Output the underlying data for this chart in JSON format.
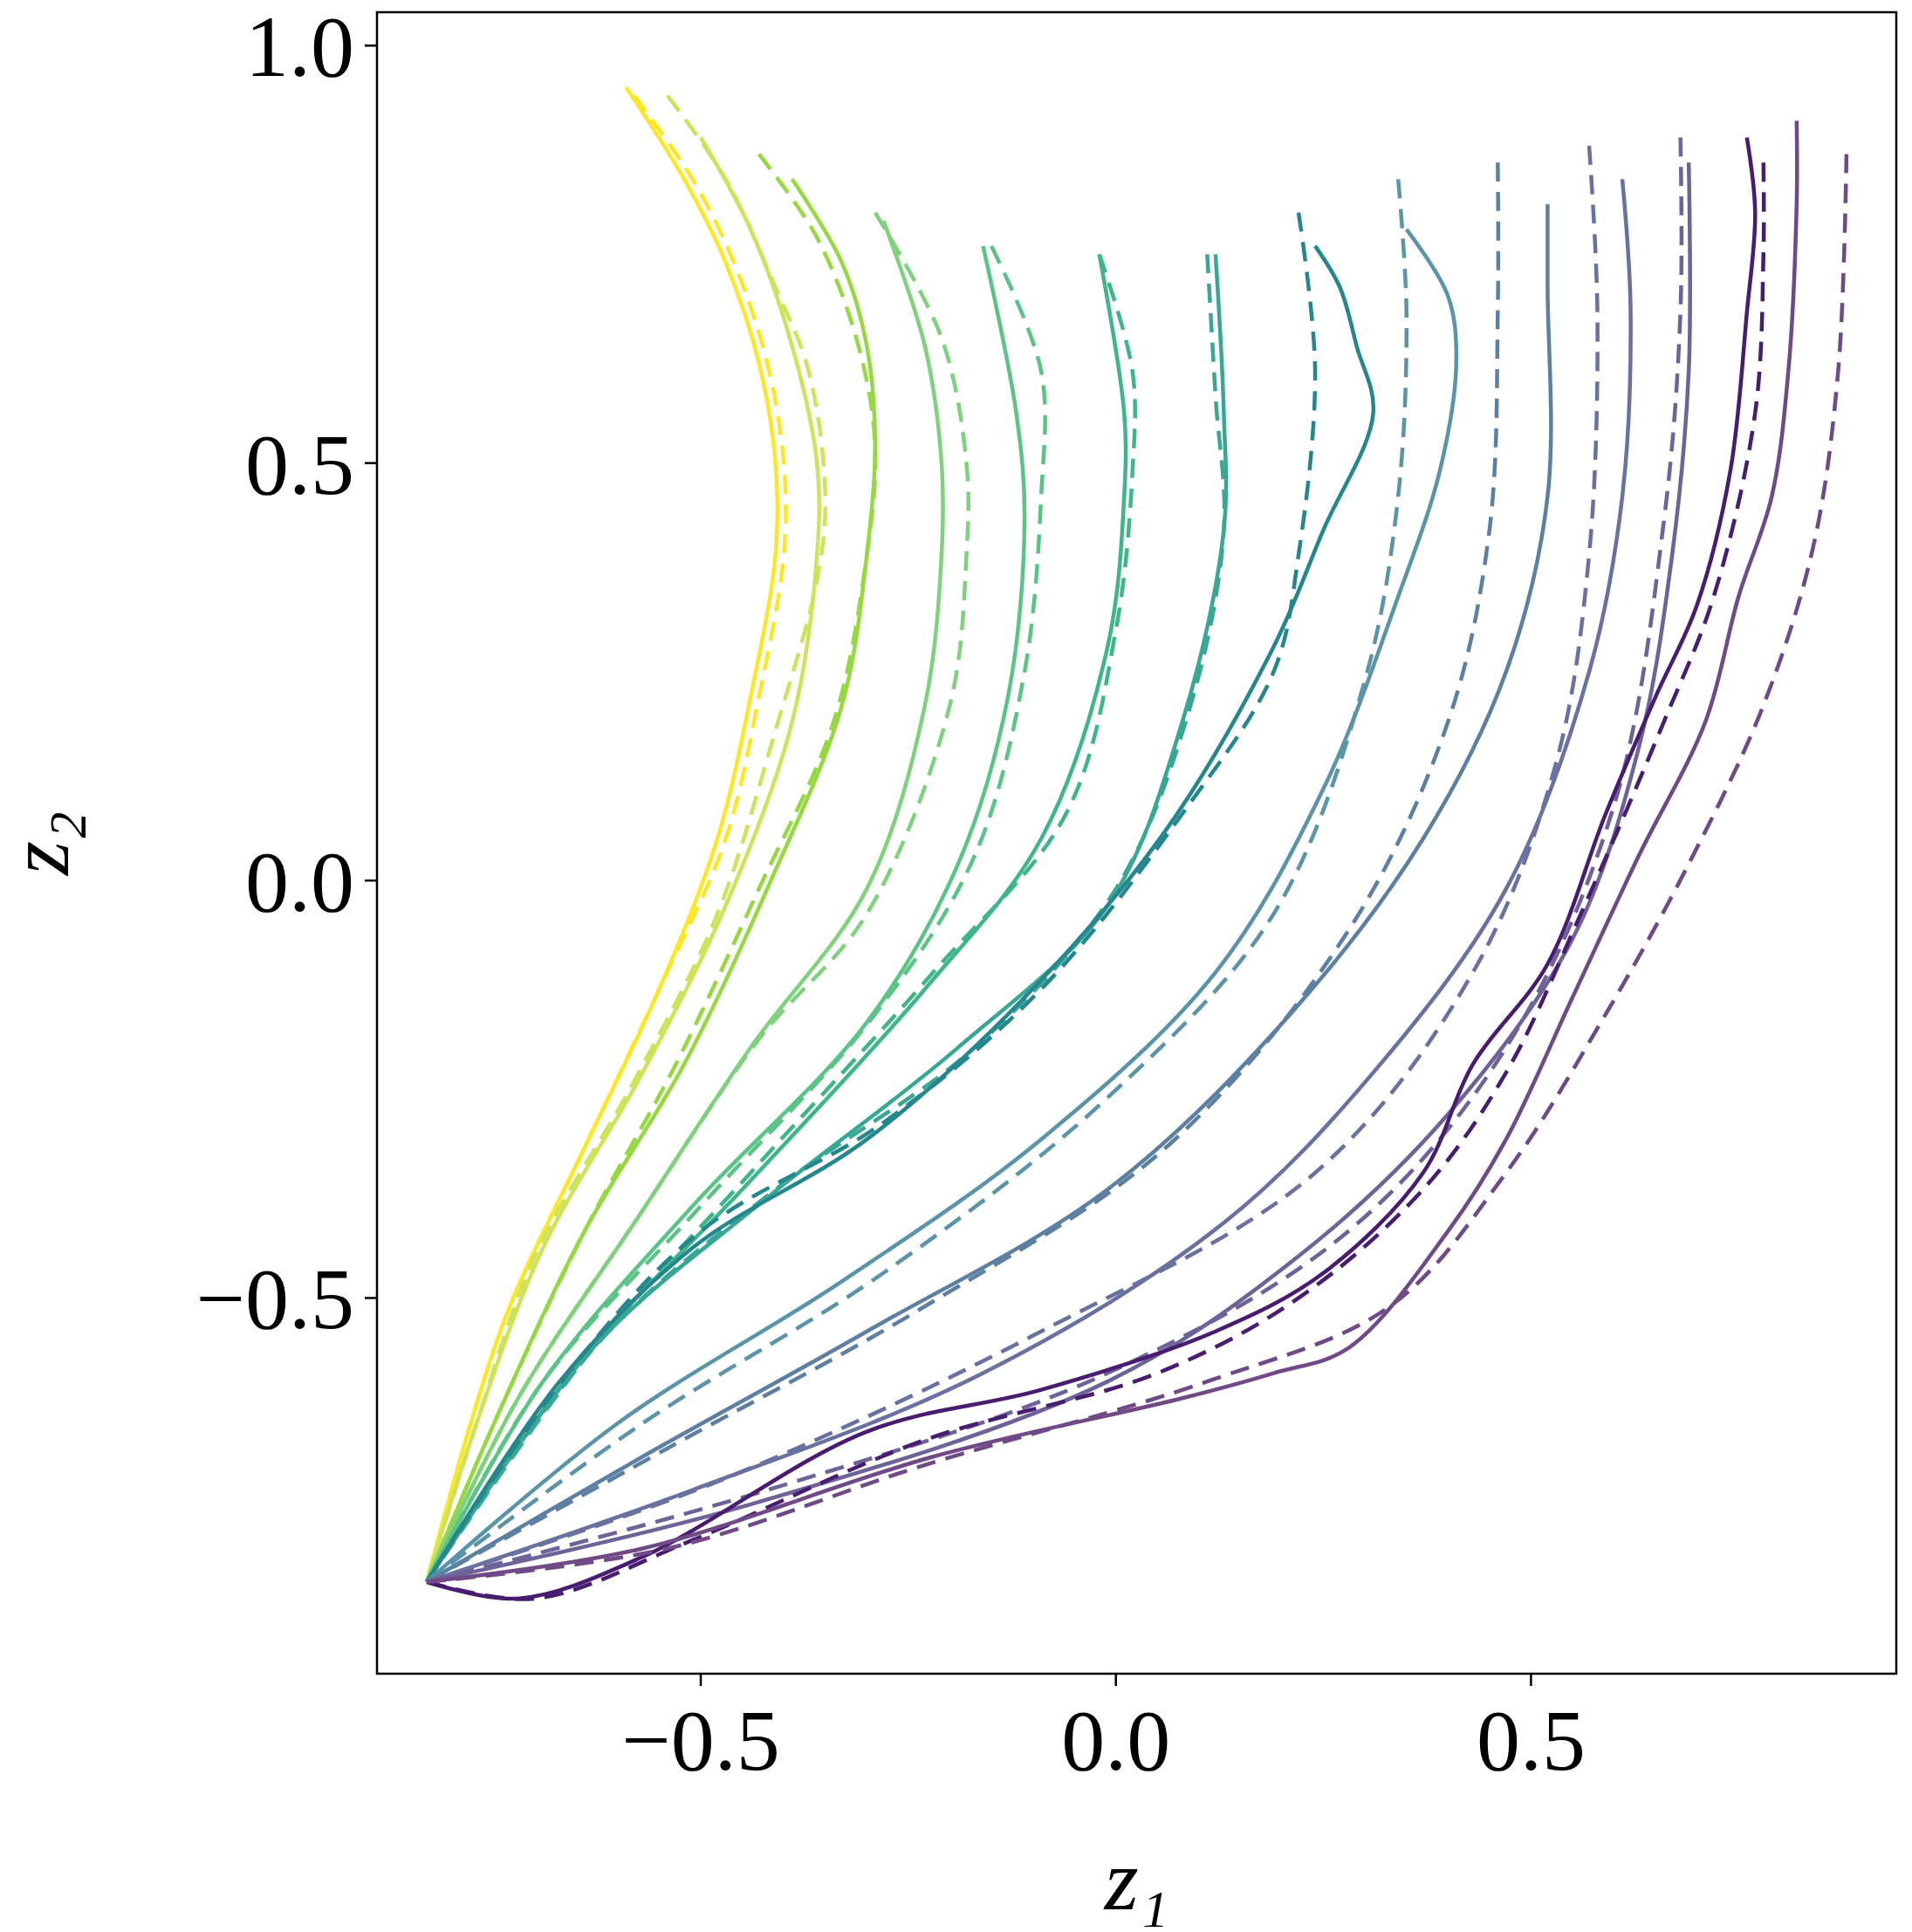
{
  "chart_data": {
    "type": "line",
    "xlabel": "z₁",
    "ylabel": "z₂",
    "xlim": [
      -0.89,
      0.94
    ],
    "ylim": [
      -0.95,
      1.04
    ],
    "xticks": [
      {
        "value": -0.5,
        "label": "−0.5"
      },
      {
        "value": 0,
        "label": "0.0"
      },
      {
        "value": 0.5,
        "label": "0.5"
      }
    ],
    "yticks": [
      {
        "value": -0.5,
        "label": "−0.5"
      },
      {
        "value": 0,
        "label": "0.0"
      },
      {
        "value": 0.5,
        "label": "0.5"
      },
      {
        "value": 1,
        "label": "1.0"
      }
    ],
    "grid": false,
    "series": [
      {
        "color": "#fde725",
        "line_style": "solid",
        "x": [
          -0.83,
          -0.78,
          -0.73,
          -0.64,
          -0.55,
          -0.48,
          -0.44,
          -0.41,
          -0.41,
          -0.43,
          -0.47,
          -0.52,
          -0.59
        ],
        "values": [
          -0.84,
          -0.66,
          -0.51,
          -0.32,
          -0.13,
          0.05,
          0.22,
          0.39,
          0.5,
          0.62,
          0.74,
          0.84,
          0.95
        ]
      },
      {
        "color": "#fde725",
        "line_style": "dashed",
        "x": [
          -0.83,
          -0.78,
          -0.73,
          -0.64,
          -0.55,
          -0.47,
          -0.43,
          -0.4,
          -0.4,
          -0.42,
          -0.46,
          -0.51,
          -0.58
        ],
        "values": [
          -0.84,
          -0.66,
          -0.51,
          -0.32,
          -0.13,
          0.05,
          0.22,
          0.39,
          0.5,
          0.62,
          0.74,
          0.84,
          0.94
        ]
      },
      {
        "color": "#cfe35a",
        "line_style": "solid",
        "x": [
          -0.83,
          -0.77,
          -0.69,
          -0.57,
          -0.47,
          -0.39,
          -0.36,
          -0.36,
          -0.39,
          -0.44,
          -0.5
        ],
        "values": [
          -0.84,
          -0.65,
          -0.44,
          -0.23,
          -0.03,
          0.19,
          0.39,
          0.5,
          0.64,
          0.78,
          0.89
        ]
      },
      {
        "color": "#cfe35a",
        "line_style": "dashed",
        "x": [
          -0.83,
          -0.77,
          -0.7,
          -0.58,
          -0.48,
          -0.41,
          -0.36,
          -0.35,
          -0.37,
          -0.41,
          -0.47,
          -0.54
        ],
        "values": [
          -0.84,
          -0.65,
          -0.45,
          -0.24,
          -0.04,
          0.18,
          0.36,
          0.46,
          0.61,
          0.71,
          0.84,
          0.94
        ]
      },
      {
        "color": "#95d840",
        "line_style": "solid",
        "x": [
          -0.83,
          -0.74,
          -0.64,
          -0.52,
          -0.42,
          -0.33,
          -0.3,
          -0.29,
          -0.3,
          -0.33,
          -0.39
        ],
        "values": [
          -0.84,
          -0.63,
          -0.42,
          -0.22,
          -0.01,
          0.21,
          0.39,
          0.52,
          0.64,
          0.74,
          0.84
        ]
      },
      {
        "color": "#95d840",
        "line_style": "dashed",
        "x": [
          -0.83,
          -0.74,
          -0.64,
          -0.53,
          -0.43,
          -0.34,
          -0.3,
          -0.29,
          -0.31,
          -0.36,
          -0.43
        ],
        "values": [
          -0.84,
          -0.63,
          -0.42,
          -0.22,
          -0.01,
          0.19,
          0.39,
          0.52,
          0.64,
          0.77,
          0.87
        ]
      },
      {
        "color": "#7fd17e",
        "line_style": "solid",
        "x": [
          -0.83,
          -0.72,
          -0.58,
          -0.44,
          -0.3,
          -0.23,
          -0.21,
          -0.21,
          -0.23,
          -0.28
        ],
        "values": [
          -0.84,
          -0.62,
          -0.41,
          -0.2,
          -0.01,
          0.21,
          0.39,
          0.5,
          0.64,
          0.79
        ]
      },
      {
        "color": "#7fd17e",
        "line_style": "dashed",
        "x": [
          -0.83,
          -0.72,
          -0.58,
          -0.43,
          -0.3,
          -0.2,
          -0.18,
          -0.18,
          -0.21,
          -0.29
        ],
        "values": [
          -0.84,
          -0.62,
          -0.41,
          -0.19,
          -0.04,
          0.21,
          0.39,
          0.5,
          0.65,
          0.8
        ]
      },
      {
        "color": "#5cc387",
        "line_style": "solid",
        "x": [
          -0.83,
          -0.69,
          -0.51,
          -0.3,
          -0.19,
          -0.13,
          -0.11,
          -0.12,
          -0.16
        ],
        "values": [
          -0.84,
          -0.6,
          -0.39,
          -0.17,
          0.02,
          0.22,
          0.43,
          0.56,
          0.76
        ]
      },
      {
        "color": "#5cc387",
        "line_style": "dashed",
        "x": [
          -0.83,
          -0.69,
          -0.5,
          -0.29,
          -0.17,
          -0.11,
          -0.09,
          -0.09,
          -0.15
        ],
        "values": [
          -0.84,
          -0.6,
          -0.39,
          -0.16,
          0.03,
          0.25,
          0.46,
          0.61,
          0.76
        ]
      },
      {
        "color": "#3fb58a",
        "line_style": "solid",
        "x": [
          -0.83,
          -0.64,
          -0.45,
          -0.23,
          -0.09,
          -0.01,
          0.01,
          0.01,
          -0.02
        ],
        "values": [
          -0.84,
          -0.57,
          -0.37,
          -0.13,
          0.05,
          0.28,
          0.46,
          0.56,
          0.75
        ]
      },
      {
        "color": "#3fb58a",
        "line_style": "dashed",
        "x": [
          -0.83,
          -0.63,
          -0.44,
          -0.22,
          -0.06,
          0,
          0.02,
          0.02,
          -0.02
        ],
        "values": [
          -0.84,
          -0.56,
          -0.35,
          -0.11,
          0.08,
          0.3,
          0.49,
          0.61,
          0.75
        ]
      },
      {
        "color": "#38a895",
        "line_style": "solid",
        "x": [
          -0.83,
          -0.63,
          -0.42,
          -0.19,
          -0.01,
          0.08,
          0.13,
          0.13,
          0.12
        ],
        "values": [
          -0.84,
          -0.56,
          -0.38,
          -0.2,
          -0.03,
          0.19,
          0.42,
          0.56,
          0.75
        ]
      },
      {
        "color": "#38a895",
        "line_style": "dashed",
        "x": [
          -0.83,
          -0.62,
          -0.41,
          -0.17,
          0,
          0.09,
          0.13,
          0.12,
          0.11
        ],
        "values": [
          -0.84,
          -0.55,
          -0.37,
          -0.2,
          -0.01,
          0.21,
          0.42,
          0.58,
          0.75
        ]
      },
      {
        "color": "#25868e",
        "line_style": "solid",
        "x": [
          -0.83,
          -0.67,
          -0.51,
          -0.3,
          -0.11,
          0.06,
          0.19,
          0.25,
          0.31,
          0.29,
          0.27,
          0.24
        ],
        "values": [
          -0.84,
          -0.6,
          -0.44,
          -0.31,
          -0.14,
          0.06,
          0.28,
          0.42,
          0.56,
          0.64,
          0.71,
          0.76
        ]
      },
      {
        "color": "#25868e",
        "line_style": "dashed",
        "x": [
          -0.83,
          -0.66,
          -0.5,
          -0.28,
          -0.09,
          0.08,
          0.19,
          0.22,
          0.24,
          0.22
        ],
        "values": [
          -0.84,
          -0.59,
          -0.42,
          -0.29,
          -0.13,
          0.08,
          0.25,
          0.39,
          0.61,
          0.8
        ]
      },
      {
        "color": "#5b94a8",
        "line_style": "solid",
        "x": [
          -0.83,
          -0.6,
          -0.33,
          -0.09,
          0.12,
          0.25,
          0.34,
          0.39,
          0.41,
          0.4,
          0.35
        ],
        "values": [
          -0.84,
          -0.65,
          -0.48,
          -0.31,
          -0.11,
          0.11,
          0.34,
          0.49,
          0.62,
          0.7,
          0.78
        ]
      },
      {
        "color": "#5b94a8",
        "line_style": "dashed",
        "x": [
          -0.83,
          -0.57,
          -0.28,
          -0.01,
          0.19,
          0.3,
          0.34,
          0.35,
          0.34
        ],
        "values": [
          -0.84,
          -0.65,
          -0.47,
          -0.26,
          -0.04,
          0.24,
          0.46,
          0.68,
          0.84
        ]
      },
      {
        "color": "#5d80a2",
        "line_style": "solid",
        "x": [
          -0.83,
          -0.57,
          -0.3,
          -0.01,
          0.21,
          0.37,
          0.47,
          0.52,
          0.52,
          0.52
        ],
        "values": [
          -0.84,
          -0.69,
          -0.54,
          -0.37,
          -0.16,
          0.05,
          0.25,
          0.46,
          0.71,
          0.81
        ]
      },
      {
        "color": "#5d80a2",
        "line_style": "dashed",
        "x": [
          -0.83,
          -0.54,
          -0.23,
          0.06,
          0.28,
          0.4,
          0.45,
          0.46,
          0.46
        ],
        "values": [
          -0.84,
          -0.68,
          -0.51,
          -0.32,
          -0.06,
          0.19,
          0.42,
          0.68,
          0.86
        ]
      },
      {
        "color": "#68719f",
        "line_style": "solid",
        "x": [
          -0.83,
          -0.51,
          -0.16,
          0.13,
          0.31,
          0.47,
          0.57,
          0.61,
          0.62,
          0.61
        ],
        "values": [
          -0.84,
          -0.73,
          -0.59,
          -0.41,
          -0.23,
          -0.01,
          0.25,
          0.46,
          0.68,
          0.84
        ]
      },
      {
        "color": "#68719f",
        "line_style": "dashed",
        "x": [
          -0.83,
          -0.48,
          -0.09,
          0.24,
          0.43,
          0.53,
          0.57,
          0.58,
          0.57
        ],
        "values": [
          -0.84,
          -0.72,
          -0.54,
          -0.35,
          -0.11,
          0.14,
          0.39,
          0.68,
          0.88
        ]
      },
      {
        "color": "#6e6299",
        "line_style": "solid",
        "x": [
          -0.83,
          -0.45,
          -0.01,
          0.22,
          0.4,
          0.55,
          0.63,
          0.67,
          0.69,
          0.69
        ],
        "values": [
          -0.84,
          -0.75,
          -0.6,
          -0.45,
          -0.28,
          -0.07,
          0.16,
          0.39,
          0.61,
          0.86
        ]
      },
      {
        "color": "#6e6299",
        "line_style": "dashed",
        "x": [
          -0.83,
          -0.42,
          -0.01,
          0.28,
          0.47,
          0.6,
          0.66,
          0.68,
          0.68
        ],
        "values": [
          -0.84,
          -0.73,
          -0.59,
          -0.42,
          -0.2,
          0.09,
          0.43,
          0.68,
          0.89
        ]
      },
      {
        "color": "#481c6e",
        "line_style": "solid",
        "x": [
          -0.83,
          -0.72,
          -0.57,
          -0.3,
          -0.09,
          0.12,
          0.25,
          0.37,
          0.43,
          0.52,
          0.59,
          0.65,
          0.7,
          0.74,
          0.76,
          0.77,
          0.76
        ],
        "values": [
          -0.84,
          -0.86,
          -0.81,
          -0.66,
          -0.61,
          -0.54,
          -0.47,
          -0.35,
          -0.22,
          -0.1,
          0.08,
          0.22,
          0.33,
          0.49,
          0.68,
          0.8,
          0.89
        ]
      },
      {
        "color": "#481c6e",
        "line_style": "dashed",
        "x": [
          -0.83,
          -0.7,
          -0.51,
          -0.23,
          0.05,
          0.22,
          0.37,
          0.47,
          0.56,
          0.66,
          0.72,
          0.77,
          0.78,
          0.78
        ],
        "values": [
          -0.84,
          -0.86,
          -0.79,
          -0.67,
          -0.59,
          -0.5,
          -0.37,
          -0.23,
          -0.04,
          0.19,
          0.34,
          0.56,
          0.75,
          0.86
        ]
      },
      {
        "color": "#6f4a87",
        "line_style": "solid",
        "x": [
          -0.83,
          -0.57,
          -0.22,
          0.08,
          0.19,
          0.28,
          0.4,
          0.47,
          0.55,
          0.63,
          0.71,
          0.75,
          0.79,
          0.81,
          0.82,
          0.82
        ],
        "values": [
          -0.84,
          -0.8,
          -0.69,
          -0.62,
          -0.59,
          -0.56,
          -0.42,
          -0.31,
          -0.14,
          0.03,
          0.19,
          0.34,
          0.46,
          0.61,
          0.81,
          0.91
        ]
      },
      {
        "color": "#6f4a87",
        "line_style": "dashed",
        "x": [
          -0.83,
          -0.54,
          -0.23,
          0.11,
          0.33,
          0.47,
          0.59,
          0.69,
          0.78,
          0.84,
          0.87,
          0.88
        ],
        "values": [
          -0.84,
          -0.8,
          -0.7,
          -0.6,
          -0.51,
          -0.35,
          -0.16,
          0.02,
          0.21,
          0.4,
          0.61,
          0.87
        ]
      }
    ]
  }
}
